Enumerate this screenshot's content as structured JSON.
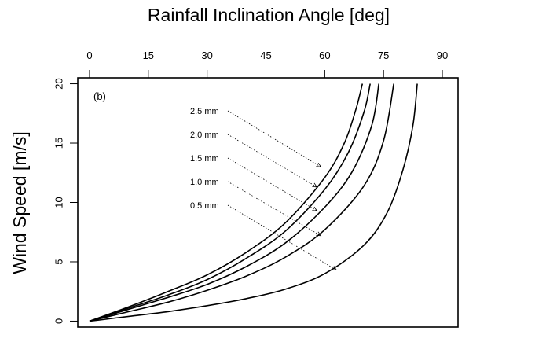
{
  "chart_data": {
    "type": "line",
    "title": "Rainfall Inclination Angle [deg]",
    "xlabel": "",
    "ylabel": "Wind Speed [m/s]",
    "panel_label": "(b)",
    "xlim": [
      -3,
      94
    ],
    "ylim": [
      -0.5,
      20.5
    ],
    "x_ticks": [
      0,
      15,
      30,
      45,
      60,
      75,
      90
    ],
    "y_ticks": [
      0,
      5,
      10,
      15,
      20
    ],
    "x_axis_position": "top",
    "grid": false,
    "series": [
      {
        "name": "2.5 mm",
        "x": [
          0,
          10,
          20,
          30,
          40,
          50,
          60,
          65,
          68,
          69.6
        ],
        "y": [
          0,
          1.2,
          2.5,
          3.9,
          5.8,
          8.3,
          12.1,
          15.0,
          17.9,
          20
        ]
      },
      {
        "name": "2.0 mm",
        "x": [
          0,
          10,
          20,
          30,
          40,
          50,
          60,
          66,
          70,
          71.6
        ],
        "y": [
          0,
          1.1,
          2.2,
          3.5,
          5.3,
          7.6,
          11.1,
          14.2,
          17.6,
          20
        ]
      },
      {
        "name": "1.5 mm",
        "x": [
          0,
          10,
          20,
          30,
          40,
          50,
          60,
          67,
          72,
          73.8
        ],
        "y": [
          0,
          1.0,
          2.0,
          3.1,
          4.6,
          6.6,
          9.6,
          12.6,
          16.5,
          20
        ]
      },
      {
        "name": "1.0 mm",
        "x": [
          0,
          10,
          20,
          30,
          40,
          50,
          60,
          70,
          75,
          77.6
        ],
        "y": [
          0,
          0.8,
          1.6,
          2.6,
          3.8,
          5.4,
          7.7,
          11.4,
          15.2,
          20
        ]
      },
      {
        "name": "0.5 mm",
        "x": [
          0,
          10,
          20,
          30,
          40,
          50,
          60,
          70,
          76,
          80,
          82.5,
          83.6
        ],
        "y": [
          0,
          0.4,
          0.8,
          1.3,
          1.9,
          2.7,
          4.0,
          6.4,
          9.2,
          12.8,
          16.5,
          20
        ]
      }
    ],
    "annotations": [
      {
        "text": "2.5 mm",
        "points_to_series": "2.5 mm",
        "target": [
          59,
          13
        ]
      },
      {
        "text": "2.0 mm",
        "points_to_series": "2.0 mm",
        "target": [
          58,
          11.3
        ]
      },
      {
        "text": "1.5 mm",
        "points_to_series": "1.5 mm",
        "target": [
          58,
          9.3
        ]
      },
      {
        "text": "1.0 mm",
        "points_to_series": "1.0 mm",
        "target": [
          59,
          7.2
        ]
      },
      {
        "text": "0.5 mm",
        "points_to_series": "0.5 mm",
        "target": [
          63,
          4.3
        ]
      }
    ]
  }
}
